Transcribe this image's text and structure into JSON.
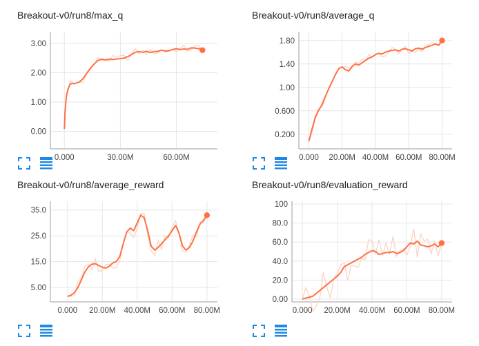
{
  "theme": {
    "series_color": "#ff7043",
    "raw_color": "#fbd3c4",
    "grid_color": "#e6e6e6",
    "axis_color": "#9e9e9e",
    "icon_color": "#1e88e5"
  },
  "icons": {
    "expand": "fullscreen-icon",
    "data_table": "data-table-icon"
  },
  "charts": [
    {
      "title": "Breakout-v0/run8/max_q",
      "icons": [
        "fullscreen-icon",
        "data-table-icon"
      ]
    },
    {
      "title": "Breakout-v0/run8/average_q",
      "icons": [
        "fullscreen-icon",
        "data-table-icon"
      ]
    },
    {
      "title": "Breakout-v0/run8/average_reward",
      "icons": [
        "fullscreen-icon",
        "data-table-icon"
      ]
    },
    {
      "title": "Breakout-v0/run8/evaluation_reward",
      "icons": [
        "fullscreen-icon",
        "data-table-icon"
      ]
    }
  ],
  "chart_data": [
    {
      "type": "line",
      "title": "Breakout-v0/run8/max_q",
      "xlabel": "",
      "ylabel": "",
      "xticks": [
        0,
        30000000,
        60000000
      ],
      "xtick_labels": [
        "0.000",
        "30.00M",
        "60.00M"
      ],
      "yticks": [
        0,
        1,
        2,
        3
      ],
      "ytick_labels": [
        "0.00",
        "1.00",
        "2.00",
        "3.00"
      ],
      "xlim": [
        -7500000,
        82000000
      ],
      "ylim": [
        -0.6,
        3.4
      ],
      "grid": true,
      "series": [
        {
          "x": [
            0,
            300000,
            700000,
            1200000,
            2000000,
            3000000,
            4000000,
            5000000,
            6000000,
            8000000,
            10000000,
            12000000,
            14000000,
            16000000,
            18000000,
            20000000,
            22000000,
            24000000,
            26000000,
            28000000,
            30000000,
            32000000,
            34000000,
            36000000,
            38000000,
            40000000,
            42000000,
            44000000,
            46000000,
            48000000,
            50000000,
            52000000,
            54000000,
            56000000,
            58000000,
            60000000,
            62000000,
            64000000,
            66000000,
            68000000,
            70000000,
            72000000,
            74000000
          ],
          "y": [
            0.08,
            0.6,
            0.95,
            1.25,
            1.45,
            1.6,
            1.64,
            1.62,
            1.64,
            1.68,
            1.8,
            1.98,
            2.15,
            2.3,
            2.42,
            2.46,
            2.44,
            2.46,
            2.45,
            2.47,
            2.48,
            2.5,
            2.55,
            2.62,
            2.7,
            2.72,
            2.7,
            2.73,
            2.69,
            2.72,
            2.73,
            2.77,
            2.74,
            2.75,
            2.79,
            2.82,
            2.79,
            2.81,
            2.8,
            2.85,
            2.84,
            2.82,
            2.77
          ]
        }
      ]
    },
    {
      "type": "line",
      "title": "Breakout-v0/run8/average_q",
      "xlabel": "",
      "ylabel": "",
      "xticks": [
        0,
        20000000,
        40000000,
        60000000,
        80000000
      ],
      "xtick_labels": [
        "0.000",
        "20.00M",
        "40.00M",
        "60.00M",
        "80.00M"
      ],
      "yticks": [
        0.2,
        0.6,
        1.0,
        1.4,
        1.8
      ],
      "ytick_labels": [
        "0.200",
        "0.600",
        "1.00",
        "1.40",
        "1.80"
      ],
      "xlim": [
        -6000000,
        86000000
      ],
      "ylim": [
        -0.05,
        1.95
      ],
      "grid": true,
      "series": [
        {
          "x": [
            0,
            2000000,
            4000000,
            6000000,
            8000000,
            10000000,
            12000000,
            14000000,
            16000000,
            18000000,
            20000000,
            22000000,
            24000000,
            26000000,
            28000000,
            30000000,
            32000000,
            34000000,
            36000000,
            38000000,
            40000000,
            42000000,
            44000000,
            46000000,
            48000000,
            50000000,
            52000000,
            54000000,
            56000000,
            58000000,
            60000000,
            62000000,
            64000000,
            66000000,
            68000000,
            70000000,
            72000000,
            74000000,
            76000000,
            78000000,
            80000000
          ],
          "y": [
            0.08,
            0.3,
            0.5,
            0.62,
            0.7,
            0.85,
            0.98,
            1.1,
            1.22,
            1.32,
            1.35,
            1.3,
            1.28,
            1.36,
            1.4,
            1.38,
            1.42,
            1.46,
            1.5,
            1.52,
            1.56,
            1.58,
            1.57,
            1.6,
            1.62,
            1.63,
            1.64,
            1.62,
            1.65,
            1.66,
            1.64,
            1.62,
            1.66,
            1.67,
            1.65,
            1.68,
            1.7,
            1.72,
            1.74,
            1.72,
            1.8
          ]
        }
      ]
    },
    {
      "type": "line",
      "title": "Breakout-v0/run8/average_reward",
      "xlabel": "",
      "ylabel": "",
      "xticks": [
        0,
        20000000,
        40000000,
        60000000,
        80000000
      ],
      "xtick_labels": [
        "0.000",
        "20.00M",
        "40.00M",
        "60.00M",
        "80.00M"
      ],
      "yticks": [
        5,
        15,
        25,
        35
      ],
      "ytick_labels": [
        "5.00",
        "15.0",
        "25.0",
        "35.0"
      ],
      "xlim": [
        -9800000,
        86000000
      ],
      "ylim": [
        -0.6,
        38.4
      ],
      "grid": true,
      "series": [
        {
          "x": [
            0,
            2000000,
            4000000,
            6000000,
            8000000,
            10000000,
            12000000,
            14000000,
            16000000,
            18000000,
            20000000,
            22000000,
            24000000,
            26000000,
            28000000,
            30000000,
            32000000,
            34000000,
            36000000,
            38000000,
            40000000,
            42000000,
            44000000,
            46000000,
            48000000,
            50000000,
            52000000,
            54000000,
            56000000,
            58000000,
            60000000,
            62000000,
            64000000,
            66000000,
            68000000,
            70000000,
            72000000,
            74000000,
            76000000,
            78000000,
            80000000
          ],
          "y": [
            1.5,
            2,
            3,
            5,
            8,
            11,
            13,
            14,
            14.2,
            13.5,
            12.8,
            12.5,
            13.2,
            14.5,
            15,
            17,
            22,
            26.5,
            28,
            27,
            30,
            33,
            32,
            27,
            21,
            19.5,
            20.5,
            22,
            23.5,
            25,
            27,
            29,
            26,
            21,
            19.5,
            20.5,
            23,
            26.5,
            29.5,
            31,
            33
          ]
        }
      ]
    },
    {
      "type": "line",
      "title": "Breakout-v0/run8/evaluation_reward",
      "xlabel": "",
      "ylabel": "",
      "xticks": [
        0,
        20000000,
        40000000,
        60000000,
        80000000
      ],
      "xtick_labels": [
        "0.000",
        "20.00M",
        "40.00M",
        "60.00M",
        "80.00M"
      ],
      "yticks": [
        0,
        20,
        40,
        60,
        80,
        100
      ],
      "ytick_labels": [
        "0.00",
        "20.0",
        "40.0",
        "60.0",
        "80.0",
        "100"
      ],
      "xlim": [
        -6000000,
        86000000
      ],
      "ylim": [
        -3,
        103
      ],
      "grid": true,
      "series": [
        {
          "x": [
            0,
            2000000,
            4000000,
            6000000,
            8000000,
            10000000,
            12000000,
            14000000,
            16000000,
            18000000,
            20000000,
            22000000,
            24000000,
            26000000,
            28000000,
            30000000,
            32000000,
            34000000,
            36000000,
            38000000,
            40000000,
            42000000,
            44000000,
            46000000,
            48000000,
            50000000,
            52000000,
            54000000,
            56000000,
            58000000,
            60000000,
            62000000,
            64000000,
            66000000,
            68000000,
            70000000,
            72000000,
            74000000,
            76000000,
            78000000,
            80000000
          ],
          "y": [
            0,
            1,
            2,
            3,
            6,
            9,
            12,
            15,
            18,
            21,
            24,
            28,
            34,
            36,
            38,
            40,
            42,
            44,
            47,
            49,
            51,
            50,
            47,
            48,
            49,
            49,
            50,
            48,
            49,
            51,
            55,
            59,
            58,
            61,
            57,
            56,
            55,
            56,
            58,
            55,
            59
          ]
        }
      ]
    }
  ]
}
